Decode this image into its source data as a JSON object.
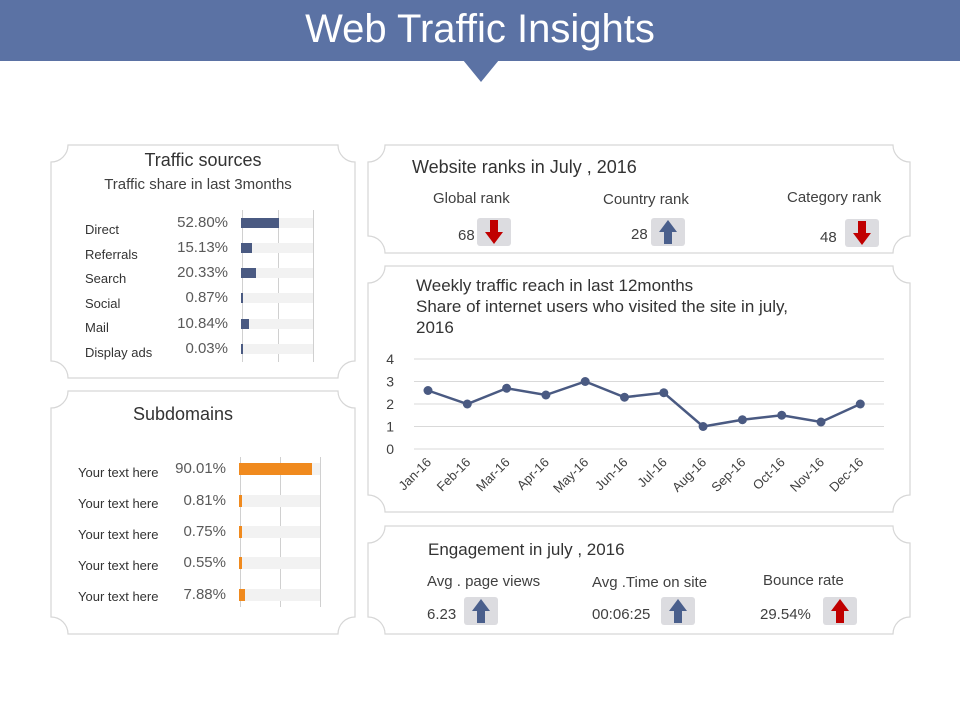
{
  "header": {
    "title": "Web Traffic Insights"
  },
  "colors": {
    "header_bg": "#5b72a4",
    "navy_bar": "#4a5a82",
    "orange_bar": "#f08a1e",
    "arrow_down": "#c00000",
    "arrow_up": "#4a5f8c",
    "line": "#4a5a82"
  },
  "traffic_sources": {
    "title": "Traffic sources",
    "subtitle": "Traffic share in last 3months",
    "items": [
      {
        "label": "Direct",
        "pct_text": "52.80%",
        "value": 52.8
      },
      {
        "label": "Referrals",
        "pct_text": "15.13%",
        "value": 15.13
      },
      {
        "label": "Search",
        "pct_text": "20.33%",
        "value": 20.33
      },
      {
        "label": "Social",
        "pct_text": "0.87%",
        "value": 0.87
      },
      {
        "label": "Mail",
        "pct_text": "10.84%",
        "value": 10.84
      },
      {
        "label": "Display ads",
        "pct_text": "0.03%",
        "value": 0.03
      }
    ]
  },
  "subdomains": {
    "title": "Subdomains",
    "items": [
      {
        "label": "Your text here",
        "pct_text": "90.01%",
        "value": 90.01
      },
      {
        "label": "Your text here",
        "pct_text": "0.81%",
        "value": 0.81
      },
      {
        "label": "Your text here",
        "pct_text": "0.75%",
        "value": 0.75
      },
      {
        "label": "Your text here",
        "pct_text": "0.55%",
        "value": 0.55
      },
      {
        "label": "Your text here",
        "pct_text": "7.88%",
        "value": 7.88
      }
    ]
  },
  "ranks": {
    "title": "Website ranks in July , 2016",
    "items": [
      {
        "label": "Global rank",
        "value": "68",
        "direction": "down"
      },
      {
        "label": "Country rank",
        "value": "28",
        "direction": "up"
      },
      {
        "label": "Category rank",
        "value": "48",
        "direction": "down"
      }
    ]
  },
  "chart_data": {
    "type": "line",
    "title": "Weekly traffic reach in last 12months",
    "subtitle_line1": "Share of internet users who visited the site in july,",
    "subtitle_line2": "2016",
    "categories": [
      "Jan-16",
      "Feb-16",
      "Mar-16",
      "Apr-16",
      "May-16",
      "Jun-16",
      "Jul-16",
      "Aug-16",
      "Sep-16",
      "Oct-16",
      "Nov-16",
      "Dec-16"
    ],
    "series": [
      {
        "name": "Share of internet users",
        "values": [
          2.6,
          2.0,
          2.7,
          2.4,
          3.0,
          2.3,
          2.5,
          1.0,
          1.3,
          1.5,
          1.2,
          2.0
        ]
      }
    ],
    "ylim": [
      0,
      4
    ],
    "yticks": [
      "0",
      "1",
      "2",
      "3",
      "4"
    ],
    "xlabel": "",
    "ylabel": "",
    "grid": true,
    "legend": false
  },
  "engagement": {
    "title": "Engagement in july , 2016",
    "items": [
      {
        "label": "Avg . page views",
        "value": "6.23",
        "direction": "up",
        "arrow_color": "navy"
      },
      {
        "label": "Avg .Time on site",
        "value": "00:06:25",
        "direction": "up",
        "arrow_color": "navy"
      },
      {
        "label": "Bounce rate",
        "value": "29.54%",
        "direction": "up",
        "arrow_color": "red"
      }
    ]
  }
}
